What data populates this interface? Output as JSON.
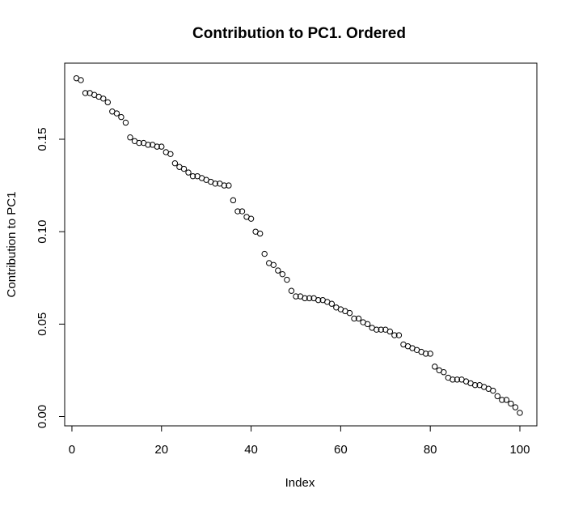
{
  "chart_data": {
    "type": "scatter",
    "title": "Contribution to PC1. Ordered",
    "xlabel": "Index",
    "ylabel": "Contribution to PC1",
    "xlim": [
      1,
      100
    ],
    "ylim": [
      0.0,
      0.185
    ],
    "x_ticks": [
      0,
      20,
      40,
      60,
      80,
      100
    ],
    "x_tick_labels": [
      "0",
      "20",
      "40",
      "60",
      "80",
      "100"
    ],
    "y_ticks": [
      0.0,
      0.05,
      0.1,
      0.15
    ],
    "y_tick_labels": [
      "0.00",
      "0.05",
      "0.10",
      "0.15"
    ],
    "grid": false,
    "marker": "open-circle",
    "x": [
      1,
      2,
      3,
      4,
      5,
      6,
      7,
      8,
      9,
      10,
      11,
      12,
      13,
      14,
      15,
      16,
      17,
      18,
      19,
      20,
      21,
      22,
      23,
      24,
      25,
      26,
      27,
      28,
      29,
      30,
      31,
      32,
      33,
      34,
      35,
      36,
      37,
      38,
      39,
      40,
      41,
      42,
      43,
      44,
      45,
      46,
      47,
      48,
      49,
      50,
      51,
      52,
      53,
      54,
      55,
      56,
      57,
      58,
      59,
      60,
      61,
      62,
      63,
      64,
      65,
      66,
      67,
      68,
      69,
      70,
      71,
      72,
      73,
      74,
      75,
      76,
      77,
      78,
      79,
      80,
      81,
      82,
      83,
      84,
      85,
      86,
      87,
      88,
      89,
      90,
      91,
      92,
      93,
      94,
      95,
      96,
      97,
      98,
      99,
      100
    ],
    "y": [
      0.183,
      0.182,
      0.175,
      0.175,
      0.174,
      0.173,
      0.172,
      0.17,
      0.165,
      0.164,
      0.162,
      0.159,
      0.151,
      0.149,
      0.148,
      0.148,
      0.147,
      0.147,
      0.146,
      0.146,
      0.143,
      0.142,
      0.137,
      0.135,
      0.134,
      0.132,
      0.13,
      0.13,
      0.129,
      0.128,
      0.127,
      0.126,
      0.126,
      0.125,
      0.125,
      0.117,
      0.111,
      0.111,
      0.108,
      0.107,
      0.1,
      0.099,
      0.088,
      0.083,
      0.082,
      0.079,
      0.077,
      0.074,
      0.068,
      0.065,
      0.065,
      0.064,
      0.064,
      0.064,
      0.063,
      0.063,
      0.062,
      0.061,
      0.059,
      0.058,
      0.057,
      0.056,
      0.053,
      0.053,
      0.051,
      0.05,
      0.048,
      0.047,
      0.047,
      0.047,
      0.046,
      0.044,
      0.044,
      0.039,
      0.038,
      0.037,
      0.036,
      0.035,
      0.034,
      0.034,
      0.027,
      0.025,
      0.024,
      0.021,
      0.02,
      0.02,
      0.02,
      0.019,
      0.018,
      0.017,
      0.017,
      0.016,
      0.015,
      0.014,
      0.011,
      0.009,
      0.009,
      0.007,
      0.005,
      0.002
    ]
  }
}
